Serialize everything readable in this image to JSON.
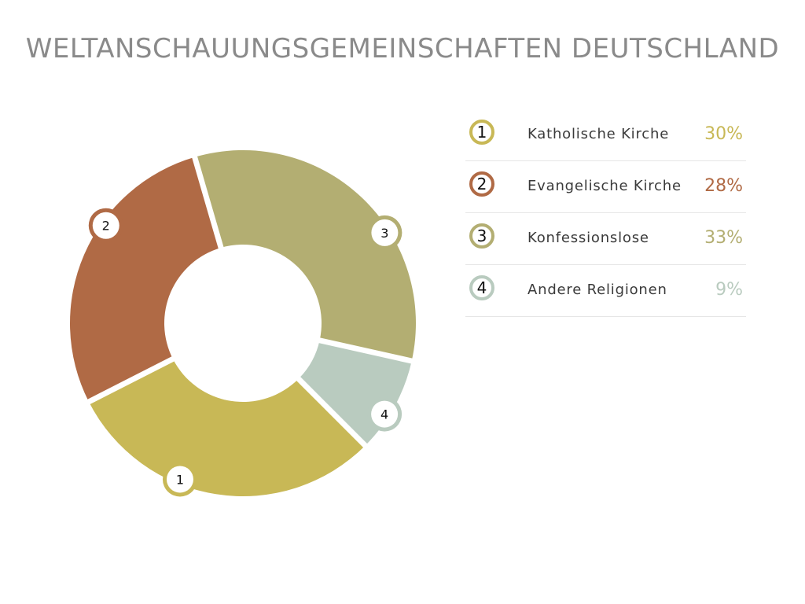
{
  "title": "WELTANSCHAUUNGSGEMEINSCHAFTEN DEUTSCHLAND",
  "chart_data": {
    "type": "pie",
    "variant": "donut",
    "title": "WELTANSCHAUUNGSGEMEINSCHAFTEN DEUTSCHLAND",
    "legend_position": "right",
    "categories": [
      "Katholische Kirche",
      "Evangelische Kirche",
      "Konfessionslose",
      "Andere Religionen"
    ],
    "values": [
      30,
      28,
      33,
      9
    ],
    "unit": "%",
    "slices": [
      {
        "number": "1",
        "label": "Katholische Kirche",
        "value": 30,
        "value_label": "30%",
        "color": "#c8b856"
      },
      {
        "number": "2",
        "label": "Evangelische Kirche",
        "value": 28,
        "value_label": "28%",
        "color": "#b06a45"
      },
      {
        "number": "3",
        "label": "Konfessionslose",
        "value": 33,
        "value_label": "33%",
        "color": "#b3ae72"
      },
      {
        "number": "4",
        "label": "Andere Religionen",
        "value": 9,
        "value_label": "9%",
        "color": "#b9cbbf"
      }
    ]
  }
}
